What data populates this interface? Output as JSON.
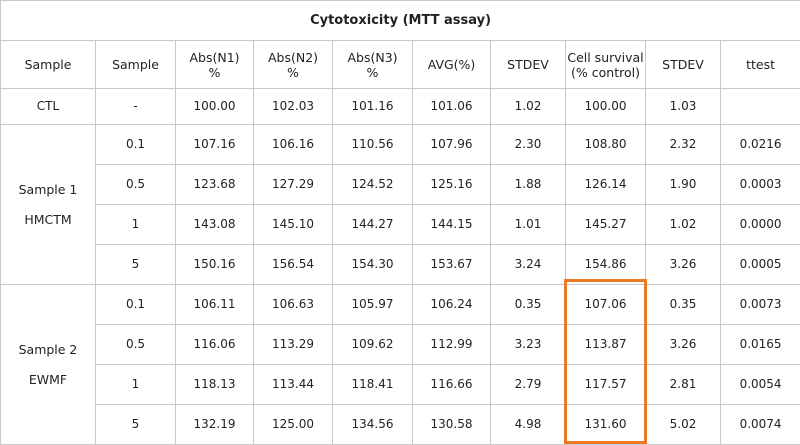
{
  "title": "Cytotoxicity (MTT assay)",
  "header": [
    "Sample",
    "Sample",
    "Abs(N1)\n%",
    "Abs(N2)\n%",
    "Abs(N3)\n%",
    "AVG(%)",
    "STDEV",
    "Cell survival\n(% control)",
    "STDEV",
    "ttest"
  ],
  "ctl_row": [
    "CTL",
    "-",
    "100.00",
    "102.03",
    "101.16",
    "101.06",
    "1.02",
    "100.00",
    "1.03"
  ],
  "groups": [
    {
      "label": [
        "Sample 1",
        "HMCTM"
      ],
      "rows": [
        [
          "0.1",
          "107.16",
          "106.16",
          "110.56",
          "107.96",
          "2.30",
          "108.80",
          "2.32",
          "0.0216"
        ],
        [
          "0.5",
          "123.68",
          "127.29",
          "124.52",
          "125.16",
          "1.88",
          "126.14",
          "1.90",
          "0.0003"
        ],
        [
          "1",
          "143.08",
          "145.10",
          "144.27",
          "144.15",
          "1.01",
          "145.27",
          "1.02",
          "0.0000"
        ],
        [
          "5",
          "150.16",
          "156.54",
          "154.30",
          "153.67",
          "3.24",
          "154.86",
          "3.26",
          "0.0005"
        ]
      ]
    },
    {
      "label": [
        "Sample 2",
        "EWMF"
      ],
      "rows": [
        [
          "0.1",
          "106.11",
          "106.63",
          "105.97",
          "106.24",
          "0.35",
          "107.06",
          "0.35",
          "0.0073"
        ],
        [
          "0.5",
          "116.06",
          "113.29",
          "109.62",
          "112.99",
          "3.23",
          "113.87",
          "3.26",
          "0.0165"
        ],
        [
          "1",
          "118.13",
          "113.44",
          "118.41",
          "116.66",
          "2.79",
          "117.57",
          "2.81",
          "0.0054"
        ],
        [
          "5",
          "132.19",
          "125.00",
          "134.56",
          "130.58",
          "4.98",
          "131.60",
          "5.02",
          "0.0074"
        ]
      ]
    }
  ]
}
